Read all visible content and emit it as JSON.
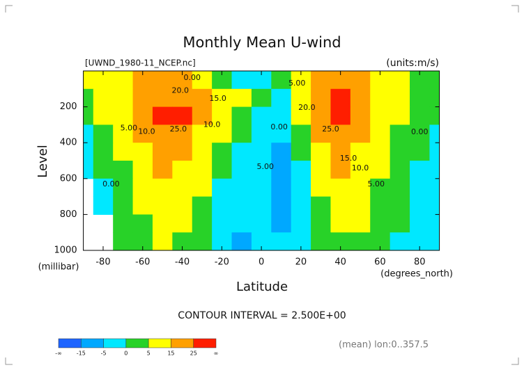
{
  "chart_data": {
    "type": "contour",
    "title": "Monthly Mean U-wind",
    "subtitle": "[UWND_1980-11_NCEP.nc]",
    "units": "(units:m/s)",
    "x_label": "Latitude",
    "x_units": "(degrees_north)",
    "y_label": "Level",
    "y_units": "(millibar)",
    "footer": "CONTOUR INTERVAL = 2.500E+00",
    "note": "(mean) lon:0..357.5",
    "xlim": [
      -90,
      90
    ],
    "ylim": [
      1000,
      0
    ],
    "xticks": [
      -80,
      -60,
      -40,
      -20,
      0,
      20,
      40,
      60,
      80
    ],
    "yticks": [
      200,
      400,
      600,
      800,
      1000
    ],
    "grid": {
      "x": [
        -90,
        -80,
        -70,
        -60,
        -50,
        -40,
        -30,
        -20,
        -10,
        0,
        10,
        20,
        30,
        40,
        50,
        60,
        70,
        80,
        90
      ],
      "y": [
        50,
        150,
        250,
        350,
        450,
        550,
        650,
        750,
        850,
        950
      ],
      "values": [
        [
          5,
          8,
          12,
          15,
          17,
          15,
          10,
          3,
          -3,
          -2,
          2,
          8,
          15,
          20,
          15,
          10,
          6,
          3,
          1
        ],
        [
          3,
          6,
          10,
          16,
          24,
          23,
          20,
          14,
          6,
          0,
          -2,
          8,
          22,
          27,
          20,
          12,
          6,
          3,
          1
        ],
        [
          2,
          5,
          9,
          16,
          27,
          25,
          19,
          10,
          2,
          -3,
          -1,
          8,
          23,
          27,
          18,
          10,
          5,
          2,
          1
        ],
        [
          -3,
          4,
          8,
          15,
          22,
          20,
          14,
          6,
          0,
          -3,
          -4,
          3,
          18,
          22,
          15,
          8,
          4,
          1,
          -1
        ],
        [
          -2,
          2,
          6,
          13,
          18,
          17,
          11,
          3,
          -2,
          -4,
          -6,
          1,
          14,
          18,
          13,
          6,
          2,
          0,
          -1
        ],
        [
          -2,
          0,
          4,
          10,
          15,
          14,
          8,
          1,
          -3,
          -4,
          -6,
          -1,
          10,
          15,
          11,
          5,
          1,
          -1,
          -1
        ],
        [
          null,
          -1,
          3,
          8,
          12,
          11,
          6,
          -1,
          -4,
          -4,
          -7,
          -2,
          7,
          12,
          9,
          4,
          1,
          -1,
          -1
        ],
        [
          null,
          -2,
          2,
          6,
          10,
          9,
          3,
          -2,
          -4,
          -3,
          -7,
          -3,
          4,
          9,
          7,
          3,
          0,
          -2,
          -1
        ],
        [
          null,
          null,
          1,
          4,
          8,
          6,
          1,
          -4,
          -5,
          -3,
          -6,
          -4,
          1,
          5,
          5,
          2,
          0,
          -1,
          -1
        ],
        [
          null,
          null,
          1,
          3,
          6,
          4,
          0,
          -5,
          -6,
          -3,
          -4,
          -3,
          0,
          3,
          3,
          1,
          -1,
          -1,
          -1
        ]
      ]
    },
    "contour_labels": [
      {
        "text": "0.00",
        "x": -35,
        "y": 39
      },
      {
        "text": "20.0",
        "x": -41,
        "y": 110
      },
      {
        "text": "15.0",
        "x": -22,
        "y": 155
      },
      {
        "text": "25.0",
        "x": -42,
        "y": 325
      },
      {
        "text": "10.0",
        "x": -58,
        "y": 340
      },
      {
        "text": "10.0",
        "x": -25,
        "y": 300
      },
      {
        "text": "5.00",
        "x": -67,
        "y": 320
      },
      {
        "text": "0.00",
        "x": -76,
        "y": 632
      },
      {
        "text": "5.00",
        "x": 18,
        "y": 70
      },
      {
        "text": "20.0",
        "x": 23,
        "y": 205
      },
      {
        "text": "0.00",
        "x": 9,
        "y": 314
      },
      {
        "text": "5.00",
        "x": 2,
        "y": 535
      },
      {
        "text": "25.0",
        "x": 35,
        "y": 325
      },
      {
        "text": "15.0",
        "x": 44,
        "y": 488
      },
      {
        "text": "10.0",
        "x": 50,
        "y": 543
      },
      {
        "text": "5.00",
        "x": 58,
        "y": 632
      },
      {
        "text": "0.00",
        "x": 80,
        "y": 341
      }
    ],
    "colorbar": {
      "ticks": [
        "-∞",
        -15,
        -5,
        0,
        5,
        15,
        25,
        "∞"
      ],
      "colors": [
        "#1e64ff",
        "#00a8ff",
        "#00e8ff",
        "#28d228",
        "#ffff00",
        "#ffa000",
        "#ff1e00"
      ]
    }
  }
}
